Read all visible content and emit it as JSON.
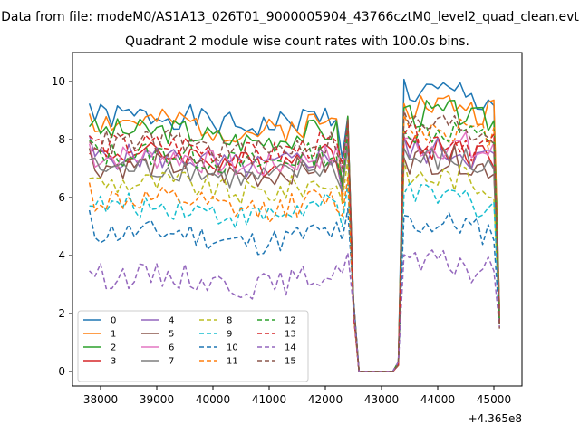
{
  "suptitle": "Data from file: modeM0/AS1A13_026T01_9000005904_43766cztM0_level2_quad_clean.evt",
  "chart_data": {
    "type": "line",
    "title": "Quadrant 2 module wise count rates with 100.0s bins.",
    "xlabel": "",
    "ylabel": "",
    "x_offset_text": "+4.365e8",
    "xlim": [
      37500,
      45500
    ],
    "ylim": [
      -0.5,
      11
    ],
    "xticks": [
      38000,
      39000,
      40000,
      41000,
      42000,
      43000,
      44000,
      45000
    ],
    "xtick_labels": [
      "38000",
      "39000",
      "40000",
      "41000",
      "42000",
      "43000",
      "44000",
      "45000"
    ],
    "yticks": [
      0,
      2,
      4,
      6,
      8,
      10
    ],
    "ytick_labels": [
      "0",
      "2",
      "4",
      "6",
      "8",
      "10"
    ],
    "grid": false,
    "legend_position": "lower-left",
    "legend_columns": 4,
    "x_start": 37800,
    "x_step": 100,
    "n_points": 74,
    "series": [
      {
        "name": "0",
        "color": "#1f77b4",
        "dash": "solid",
        "level": 8.8,
        "post": 9.6,
        "ramp": 7.6,
        "seed": 1
      },
      {
        "name": "1",
        "color": "#ff7f0e",
        "dash": "solid",
        "level": 8.6,
        "post": 9.2,
        "ramp": 6.0,
        "seed": 2
      },
      {
        "name": "2",
        "color": "#2ca02c",
        "dash": "solid",
        "level": 8.3,
        "post": 8.9,
        "ramp": 6.5,
        "seed": 3
      },
      {
        "name": "3",
        "color": "#d62728",
        "dash": "solid",
        "level": 7.5,
        "post": 7.7,
        "ramp": 6.4,
        "seed": 4
      },
      {
        "name": "4",
        "color": "#9467bd",
        "dash": "solid",
        "level": 7.4,
        "post": 7.6,
        "ramp": 6.3,
        "seed": 5
      },
      {
        "name": "5",
        "color": "#8c564b",
        "dash": "solid",
        "level": 7.1,
        "post": 7.3,
        "ramp": 6.6,
        "seed": 6
      },
      {
        "name": "6",
        "color": "#e377c2",
        "dash": "solid",
        "level": 7.4,
        "post": 7.8,
        "ramp": 6.9,
        "seed": 7
      },
      {
        "name": "7",
        "color": "#7f7f7f",
        "dash": "solid",
        "level": 7.0,
        "post": 7.3,
        "ramp": 6.2,
        "seed": 8
      },
      {
        "name": "8",
        "color": "#bcbd22",
        "dash": "dashed",
        "level": 6.5,
        "post": 6.7,
        "ramp": 5.8,
        "seed": 9
      },
      {
        "name": "9",
        "color": "#17becf",
        "dash": "dashed",
        "level": 5.7,
        "post": 6.0,
        "ramp": 4.9,
        "seed": 10
      },
      {
        "name": "10",
        "color": "#1f77b4",
        "dash": "dashed",
        "level": 4.8,
        "post": 5.1,
        "ramp": 4.4,
        "seed": 11
      },
      {
        "name": "11",
        "color": "#ff7f0e",
        "dash": "dashed",
        "level": 5.9,
        "post": 8.4,
        "ramp": 5.2,
        "seed": 12
      },
      {
        "name": "12",
        "color": "#2ca02c",
        "dash": "dashed",
        "level": 7.5,
        "post": 8.3,
        "ramp": 6.2,
        "seed": 13
      },
      {
        "name": "13",
        "color": "#d62728",
        "dash": "dashed",
        "level": 7.8,
        "post": 8.0,
        "ramp": 6.9,
        "seed": 14
      },
      {
        "name": "14",
        "color": "#9467bd",
        "dash": "dashed",
        "level": 3.3,
        "post": 3.7,
        "ramp": 3.6,
        "seed": 15
      },
      {
        "name": "15",
        "color": "#8c564b",
        "dash": "dashed",
        "level": 7.9,
        "post": 8.5,
        "ramp": 7.2,
        "seed": 16
      }
    ],
    "gap_start": 42600,
    "gap_end": 43300,
    "gap_value": 0,
    "spike_x": 42400,
    "spike_value": 8.8,
    "end_x": 45100,
    "end_values_low": 1.0,
    "end_values_high": 3.0
  }
}
